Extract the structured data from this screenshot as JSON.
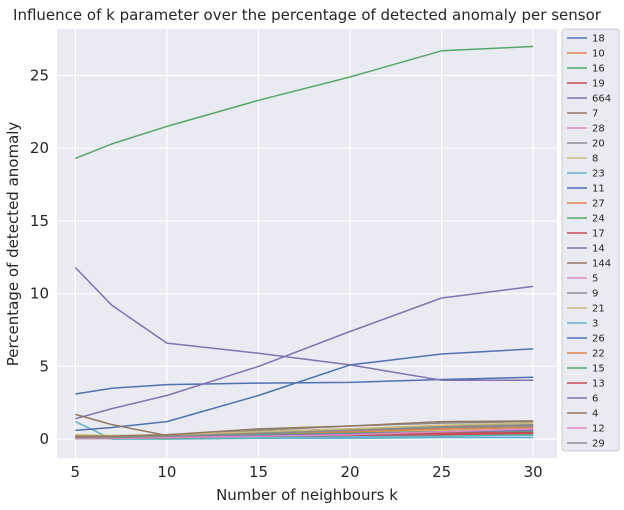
{
  "chart_data": {
    "type": "line",
    "title": "Influence of k parameter over the percentage of detected anomaly per sensor",
    "xlabel": "Number of neighbours k",
    "ylabel": "Percentage of detected anomaly",
    "xlim": [
      4.0,
      31.3
    ],
    "ylim": [
      -1.3,
      28.2
    ],
    "xticks": [
      5,
      10,
      15,
      20,
      25,
      30
    ],
    "yticks": [
      0,
      5,
      10,
      15,
      20,
      25
    ],
    "grid": true,
    "legend_position": "outside-right",
    "x": [
      5,
      7,
      10,
      15,
      20,
      25,
      30
    ],
    "series": [
      {
        "name": "18",
        "color": "#4c72b0",
        "values": [
          3.1,
          3.5,
          3.75,
          3.85,
          3.9,
          4.1,
          4.25
        ]
      },
      {
        "name": "10",
        "color": "#dd8452",
        "values": [
          0.1,
          0.05,
          0.1,
          0.2,
          0.35,
          0.6,
          0.8
        ]
      },
      {
        "name": "16",
        "color": "#55a868",
        "values": [
          19.3,
          20.3,
          21.5,
          23.3,
          24.9,
          26.7,
          27.0
        ]
      },
      {
        "name": "19",
        "color": "#c44e52",
        "values": [
          0.05,
          0.05,
          0.05,
          0.1,
          0.15,
          0.3,
          0.45
        ]
      },
      {
        "name": "664",
        "color": "#8172b3",
        "values": [
          11.8,
          9.2,
          6.6,
          5.9,
          5.1,
          4.05,
          4.05
        ]
      },
      {
        "name": "7",
        "color": "#937860",
        "values": [
          0.2,
          0.15,
          0.2,
          0.35,
          0.5,
          0.7,
          0.9
        ]
      },
      {
        "name": "28",
        "color": "#da8bc3",
        "values": [
          0.05,
          0.05,
          0.1,
          0.15,
          0.25,
          0.4,
          0.6
        ]
      },
      {
        "name": "20",
        "color": "#8c8c8c",
        "values": [
          0.2,
          0.2,
          0.3,
          0.6,
          0.9,
          1.1,
          1.2
        ]
      },
      {
        "name": "8",
        "color": "#ccb974",
        "values": [
          0.1,
          0.1,
          0.15,
          0.3,
          0.45,
          0.6,
          0.7
        ]
      },
      {
        "name": "23",
        "color": "#64b5cd",
        "values": [
          1.2,
          0.0,
          0.0,
          0.05,
          0.05,
          0.1,
          0.1
        ]
      },
      {
        "name": "11",
        "color": "#4c72b0",
        "values": [
          0.6,
          0.8,
          1.2,
          3.0,
          5.1,
          5.85,
          6.2
        ]
      },
      {
        "name": "27",
        "color": "#dd8452",
        "values": [
          0.15,
          0.1,
          0.2,
          0.4,
          0.6,
          0.8,
          1.0
        ]
      },
      {
        "name": "24",
        "color": "#55a868",
        "values": [
          0.05,
          0.05,
          0.05,
          0.1,
          0.15,
          0.2,
          0.3
        ]
      },
      {
        "name": "17",
        "color": "#c44e52",
        "values": [
          0.05,
          0.05,
          0.1,
          0.15,
          0.2,
          0.3,
          0.4
        ]
      },
      {
        "name": "14",
        "color": "#8172b3",
        "values": [
          1.4,
          2.1,
          3.0,
          5.0,
          7.4,
          9.7,
          10.5
        ]
      },
      {
        "name": "144",
        "color": "#937860",
        "values": [
          1.7,
          1.0,
          0.25,
          0.3,
          0.4,
          0.5,
          0.55
        ]
      },
      {
        "name": "5",
        "color": "#da8bc3",
        "values": [
          0.1,
          0.1,
          0.15,
          0.25,
          0.35,
          0.5,
          0.6
        ]
      },
      {
        "name": "9",
        "color": "#8c8c8c",
        "values": [
          0.25,
          0.2,
          0.3,
          0.5,
          0.7,
          0.9,
          1.0
        ]
      },
      {
        "name": "21",
        "color": "#ccb974",
        "values": [
          0.3,
          0.25,
          0.3,
          0.5,
          0.7,
          0.95,
          1.1
        ]
      },
      {
        "name": "3",
        "color": "#64b5cd",
        "values": [
          0.05,
          0.05,
          0.1,
          0.1,
          0.15,
          0.2,
          0.25
        ]
      },
      {
        "name": "26",
        "color": "#4c72b0",
        "values": [
          0.1,
          0.15,
          0.2,
          0.35,
          0.6,
          0.8,
          0.9
        ]
      },
      {
        "name": "22",
        "color": "#dd8452",
        "values": [
          0.05,
          0.1,
          0.15,
          0.3,
          0.5,
          0.7,
          0.8
        ]
      },
      {
        "name": "15",
        "color": "#55a868",
        "values": [
          0.2,
          0.15,
          0.2,
          0.3,
          0.4,
          0.5,
          0.55
        ]
      },
      {
        "name": "13",
        "color": "#c44e52",
        "values": [
          0.1,
          0.1,
          0.15,
          0.2,
          0.3,
          0.4,
          0.45
        ]
      },
      {
        "name": "6",
        "color": "#8172b3",
        "values": [
          0.05,
          0.1,
          0.15,
          0.25,
          0.35,
          0.5,
          0.6
        ]
      },
      {
        "name": "4",
        "color": "#937860",
        "values": [
          0.2,
          0.2,
          0.3,
          0.7,
          0.9,
          1.2,
          1.25
        ]
      },
      {
        "name": "12",
        "color": "#da8bc3",
        "values": [
          0.05,
          0.05,
          0.1,
          0.2,
          0.3,
          0.5,
          0.7
        ]
      },
      {
        "name": "29",
        "color": "#8c8c8c",
        "values": [
          0.1,
          0.1,
          0.2,
          0.4,
          0.6,
          0.8,
          0.9
        ]
      }
    ]
  }
}
